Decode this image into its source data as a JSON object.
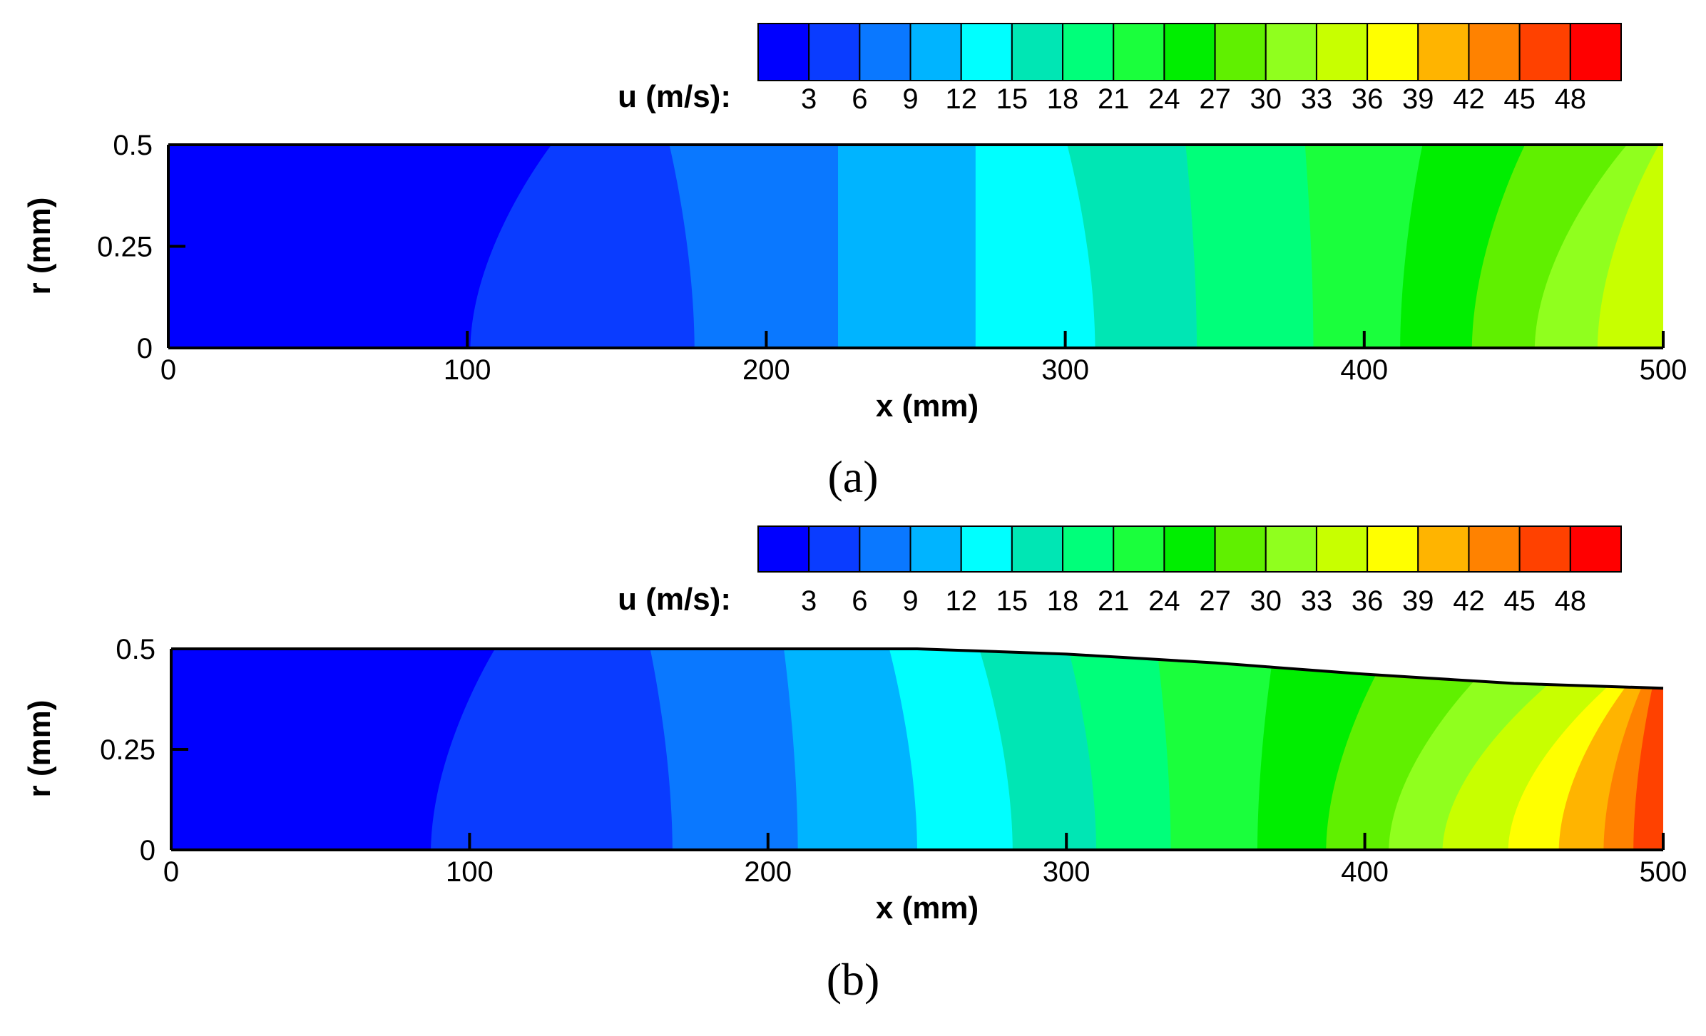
{
  "chart_data": [
    {
      "type": "heatmap",
      "panel_label": "(a)",
      "xlabel": "x (mm)",
      "ylabel": "r (mm)",
      "xlim": [
        0,
        500
      ],
      "ylim": [
        0,
        0.5
      ],
      "x_ticks": [
        "0",
        "100",
        "200",
        "300",
        "400",
        "500"
      ],
      "y_ticks": [
        "0",
        "0.25",
        "0.5"
      ],
      "colorbar_label": "u (m/s):",
      "colorbar_ticks": [
        "3",
        "6",
        "9",
        "12",
        "15",
        "18",
        "21",
        "24",
        "27",
        "30",
        "33",
        "36",
        "39",
        "42",
        "45",
        "48"
      ],
      "wall_profile": {
        "x": [
          0,
          500
        ],
        "r": [
          0.5,
          0.5
        ]
      },
      "contour_axis_x": [
        0,
        101,
        176,
        224,
        270,
        310,
        344,
        383,
        412,
        436,
        457,
        478,
        500
      ],
      "contour_wall_x": [
        0,
        130,
        167,
        224,
        270,
        300,
        340,
        380,
        420,
        455,
        490,
        500,
        500
      ],
      "level_colors": [
        "#0000ff",
        "#0a3cff",
        "#0a78ff",
        "#00b4ff",
        "#00ffff",
        "#00e6b4",
        "#00ff7a",
        "#1aff3c",
        "#00ee00",
        "#60f000",
        "#90ff1e",
        "#c8ff00"
      ],
      "max_value": 34
    },
    {
      "type": "heatmap",
      "panel_label": "(b)",
      "xlabel": "x (mm)",
      "ylabel": "r (mm)",
      "xlim": [
        0,
        500
      ],
      "ylim": [
        0,
        0.5
      ],
      "x_ticks": [
        "0",
        "100",
        "200",
        "300",
        "400",
        "500"
      ],
      "y_ticks": [
        "0",
        "0.25",
        "0.5"
      ],
      "colorbar_label": "u (m/s):",
      "colorbar_ticks": [
        "3",
        "6",
        "9",
        "12",
        "15",
        "18",
        "21",
        "24",
        "27",
        "30",
        "33",
        "36",
        "39",
        "42",
        "45",
        "48"
      ],
      "wall_profile": {
        "x": [
          0,
          250,
          300,
          350,
          400,
          450,
          500
        ],
        "r": [
          0.5,
          0.5,
          0.487,
          0.465,
          0.437,
          0.414,
          0.402
        ]
      },
      "contour_axis_x": [
        0,
        87,
        168,
        210,
        250,
        282,
        310,
        335,
        364,
        387,
        408,
        426,
        448,
        465,
        480,
        490,
        500
      ],
      "contour_wall_x": [
        0,
        110,
        160,
        205,
        240,
        270,
        300,
        330,
        370,
        410,
        450,
        480,
        500,
        500,
        500,
        500,
        500
      ],
      "level_colors": [
        "#0000ff",
        "#0a3cff",
        "#0a78ff",
        "#00b4ff",
        "#00ffff",
        "#00e6b4",
        "#00ff7a",
        "#1aff3c",
        "#00ee00",
        "#60f000",
        "#90ff1e",
        "#c8ff00",
        "#ffff00",
        "#ffb400",
        "#ff8200",
        "#ff4100"
      ],
      "max_value": 46
    }
  ],
  "colorbar_colors": [
    "#0000ff",
    "#0a3cff",
    "#0a78ff",
    "#00b4ff",
    "#00ffff",
    "#00e6b4",
    "#00ff7a",
    "#1aff3c",
    "#00ee00",
    "#60f000",
    "#90ff1e",
    "#c8ff00",
    "#ffff00",
    "#ffb400",
    "#ff8200",
    "#ff4100",
    "#ff0000"
  ]
}
